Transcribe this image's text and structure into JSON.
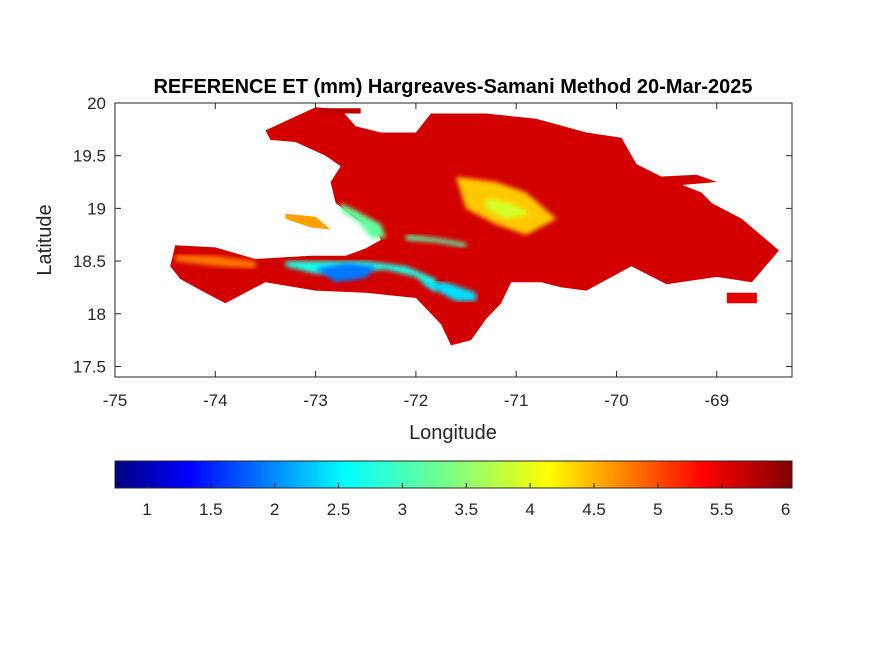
{
  "chart_data": {
    "type": "heatmap",
    "title": "REFERENCE ET (mm) Hargreaves-Samani Method  20-Mar-2025",
    "xlabel": "Longitude",
    "ylabel": "Latitude",
    "xlim": [
      -75,
      -68.25
    ],
    "ylim": [
      17.4,
      20
    ],
    "x_ticks": [
      -75,
      -74,
      -73,
      -72,
      -71,
      -70,
      -69
    ],
    "x_tick_labels": [
      "-75",
      "-74",
      "-73",
      "-72",
      "-71",
      "-70",
      "-69"
    ],
    "y_ticks": [
      17.5,
      18,
      18.5,
      19,
      19.5,
      20
    ],
    "y_tick_labels": [
      "17.5",
      "18",
      "18.5",
      "19",
      "19.5",
      "20"
    ],
    "grid": false,
    "colorbar": {
      "orientation": "horizontal",
      "location": "below",
      "colormap": "jet",
      "clim": [
        0.75,
        6.05
      ],
      "ticks": [
        1,
        1.5,
        2,
        2.5,
        3,
        3.5,
        4,
        4.5,
        5,
        5.5,
        6
      ],
      "tick_labels": [
        "1",
        "1.5",
        "2",
        "2.5",
        "3",
        "3.5",
        "4",
        "4.5",
        "5",
        "5.5",
        "6"
      ]
    },
    "regions": [
      {
        "id": "island-background",
        "value": 5.6,
        "outline": [
          [
            -73.5,
            19.74
          ],
          [
            -73.0,
            19.96
          ],
          [
            -72.75,
            19.94
          ],
          [
            -72.6,
            19.78
          ],
          [
            -72.35,
            19.72
          ],
          [
            -72.0,
            19.72
          ],
          [
            -71.85,
            19.9
          ],
          [
            -71.3,
            19.9
          ],
          [
            -70.8,
            19.85
          ],
          [
            -70.3,
            19.72
          ],
          [
            -69.95,
            19.67
          ],
          [
            -69.8,
            19.42
          ],
          [
            -69.55,
            19.3
          ],
          [
            -69.15,
            19.15
          ],
          [
            -69.05,
            19.05
          ],
          [
            -68.75,
            18.9
          ],
          [
            -68.38,
            18.6
          ],
          [
            -68.65,
            18.3
          ],
          [
            -69.0,
            18.35
          ],
          [
            -69.5,
            18.28
          ],
          [
            -69.85,
            18.45
          ],
          [
            -70.3,
            18.22
          ],
          [
            -70.55,
            18.25
          ],
          [
            -70.75,
            18.3
          ],
          [
            -71.05,
            18.3
          ],
          [
            -71.15,
            18.1
          ],
          [
            -71.3,
            17.95
          ],
          [
            -71.45,
            17.75
          ],
          [
            -71.65,
            17.7
          ],
          [
            -71.75,
            17.9
          ],
          [
            -72.0,
            18.15
          ],
          [
            -72.5,
            18.2
          ],
          [
            -73.0,
            18.22
          ],
          [
            -73.5,
            18.3
          ],
          [
            -73.9,
            18.1
          ],
          [
            -74.1,
            18.2
          ],
          [
            -74.35,
            18.33
          ],
          [
            -74.45,
            18.45
          ],
          [
            -74.4,
            18.65
          ],
          [
            -74.0,
            18.63
          ],
          [
            -73.6,
            18.52
          ],
          [
            -73.05,
            18.55
          ],
          [
            -72.7,
            18.55
          ],
          [
            -72.5,
            18.62
          ],
          [
            -72.35,
            18.7
          ],
          [
            -72.4,
            18.8
          ],
          [
            -72.6,
            18.9
          ],
          [
            -72.8,
            19.05
          ],
          [
            -72.85,
            19.25
          ],
          [
            -72.75,
            19.4
          ],
          [
            -72.9,
            19.5
          ],
          [
            -73.2,
            19.63
          ],
          [
            -73.45,
            19.65
          ]
        ]
      },
      {
        "id": "tortuga-island",
        "value": 5.7,
        "outline": [
          [
            -72.95,
            19.95
          ],
          [
            -72.55,
            19.95
          ],
          [
            -72.55,
            19.9
          ],
          [
            -72.95,
            19.9
          ]
        ]
      },
      {
        "id": "gonave-island",
        "value": 4.6,
        "outline": [
          [
            -73.3,
            18.95
          ],
          [
            -73.0,
            18.92
          ],
          [
            -72.85,
            18.8
          ],
          [
            -73.05,
            18.82
          ],
          [
            -73.3,
            18.9
          ]
        ]
      },
      {
        "id": "saona-island",
        "value": 5.5,
        "outline": [
          [
            -68.9,
            18.2
          ],
          [
            -68.6,
            18.2
          ],
          [
            -68.6,
            18.1
          ],
          [
            -68.9,
            18.1
          ]
        ]
      },
      {
        "id": "samana-peninsula",
        "value": 5.6,
        "outline": [
          [
            -69.6,
            19.3
          ],
          [
            -69.2,
            19.32
          ],
          [
            -69.0,
            19.25
          ],
          [
            -69.6,
            19.2
          ]
        ]
      },
      {
        "id": "southern-peninsula-west-warm",
        "value": 4.8,
        "outline": [
          [
            -74.4,
            18.5
          ],
          [
            -74.0,
            18.45
          ],
          [
            -73.6,
            18.43
          ],
          [
            -73.6,
            18.5
          ],
          [
            -74.0,
            18.55
          ],
          [
            -74.4,
            18.56
          ]
        ]
      },
      {
        "id": "massif-de-la-selle-cool",
        "value": 2.7,
        "outline": [
          [
            -73.3,
            18.45
          ],
          [
            -73.0,
            18.38
          ],
          [
            -72.6,
            18.4
          ],
          [
            -72.3,
            18.42
          ],
          [
            -72.0,
            18.35
          ],
          [
            -71.8,
            18.2
          ],
          [
            -71.8,
            18.33
          ],
          [
            -72.1,
            18.45
          ],
          [
            -72.5,
            18.5
          ],
          [
            -73.0,
            18.5
          ],
          [
            -73.3,
            18.5
          ]
        ]
      },
      {
        "id": "massif-de-la-selle-core",
        "value": 1.9,
        "outline": [
          [
            -73.0,
            18.43
          ],
          [
            -72.8,
            18.3
          ],
          [
            -72.5,
            18.34
          ],
          [
            -72.4,
            18.45
          ],
          [
            -72.7,
            18.48
          ]
        ]
      },
      {
        "id": "bahoruco-cool",
        "value": 2.4,
        "outline": [
          [
            -71.95,
            18.3
          ],
          [
            -71.6,
            18.12
          ],
          [
            -71.4,
            18.12
          ],
          [
            -71.4,
            18.2
          ],
          [
            -71.7,
            18.3
          ]
        ]
      },
      {
        "id": "central-haiti-band-cool",
        "value": 3.2,
        "outline": [
          [
            -72.75,
            19.05
          ],
          [
            -72.6,
            18.98
          ],
          [
            -72.35,
            18.85
          ],
          [
            -72.3,
            18.72
          ],
          [
            -72.45,
            18.72
          ],
          [
            -72.55,
            18.85
          ],
          [
            -72.75,
            18.98
          ]
        ]
      },
      {
        "id": "neiba-band-cool",
        "value": 3.1,
        "outline": [
          [
            -72.1,
            18.7
          ],
          [
            -71.8,
            18.68
          ],
          [
            -71.5,
            18.63
          ],
          [
            -71.5,
            18.67
          ],
          [
            -71.8,
            18.72
          ],
          [
            -72.1,
            18.75
          ]
        ]
      },
      {
        "id": "cordillera-central-warm",
        "value": 4.4,
        "outline": [
          [
            -71.6,
            19.3
          ],
          [
            -71.2,
            19.25
          ],
          [
            -70.9,
            19.15
          ],
          [
            -70.6,
            18.9
          ],
          [
            -70.9,
            18.75
          ],
          [
            -71.2,
            18.85
          ],
          [
            -71.5,
            19.0
          ]
        ]
      },
      {
        "id": "cordillera-central-core",
        "value": 3.9,
        "outline": [
          [
            -71.3,
            19.1
          ],
          [
            -71.05,
            19.05
          ],
          [
            -70.85,
            18.95
          ],
          [
            -71.1,
            18.9
          ],
          [
            -71.3,
            19.0
          ]
        ]
      }
    ]
  }
}
